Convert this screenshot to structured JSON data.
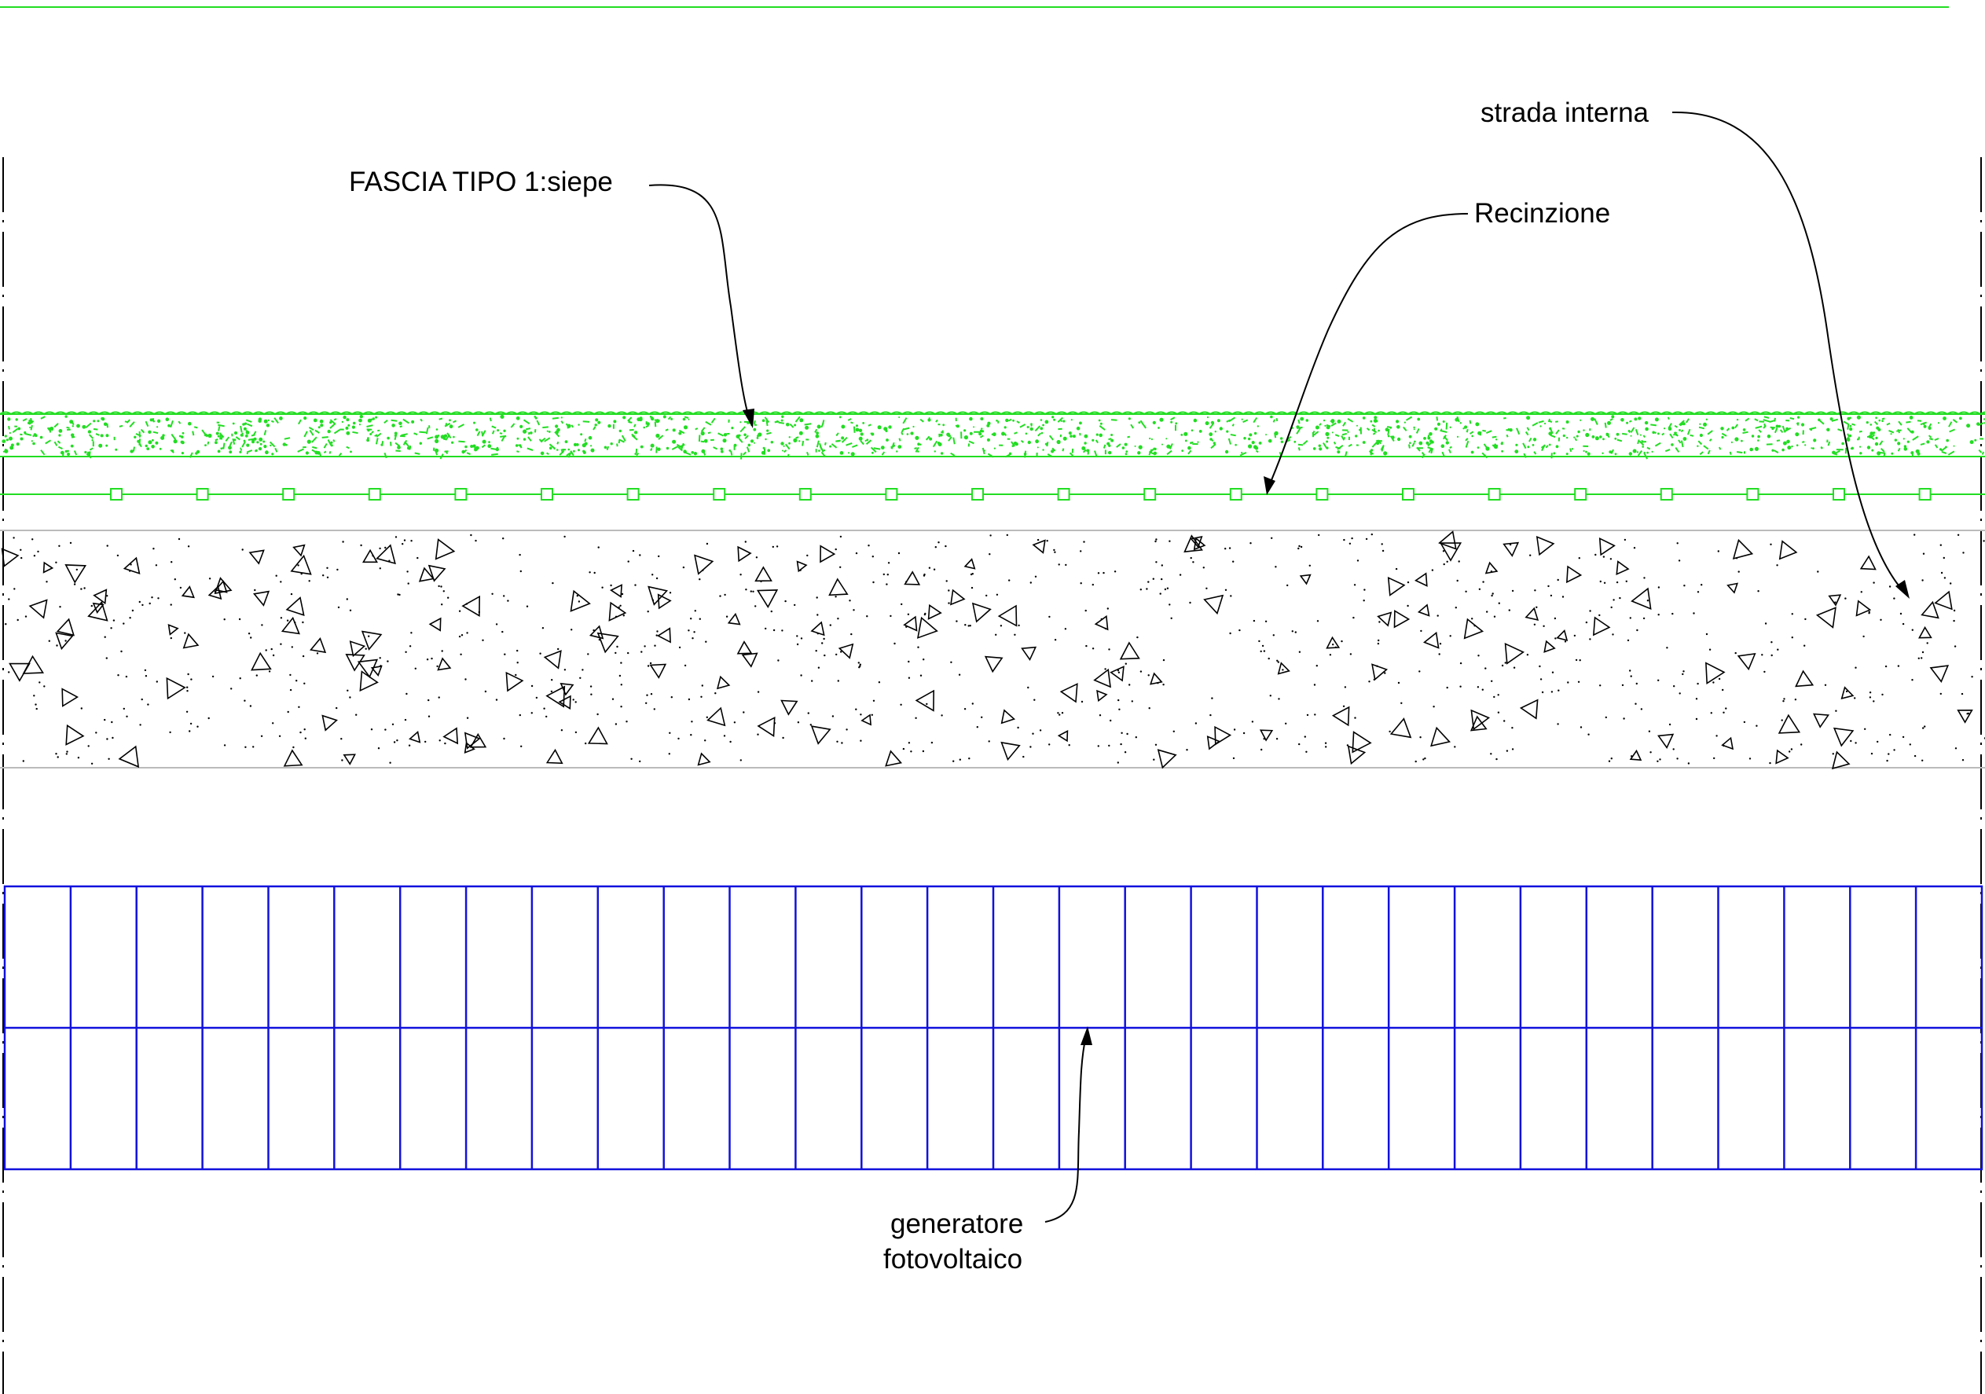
{
  "labels": {
    "hedge": "FASCIA TIPO 1:siepe",
    "fence": "Recinzione",
    "road": "strada interna",
    "pv_line1": "generatore",
    "pv_line2": "fotovoltaico"
  },
  "colors": {
    "background": "#ffffff",
    "hedge_green": "#22dd22",
    "pv_blue": "#1111dd",
    "ink": "#000000",
    "road_border": "#bbbbbb"
  },
  "pv_array": {
    "rows": 2,
    "columns": 30
  },
  "fence": {
    "posts": 22
  }
}
